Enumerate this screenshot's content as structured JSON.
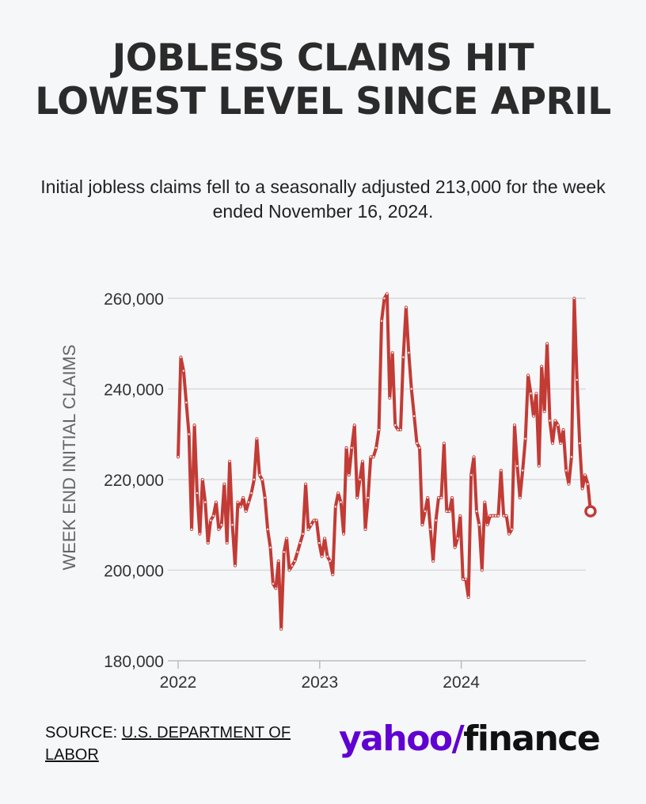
{
  "title": "JOBLESS CLAIMS HIT LOWEST LEVEL SINCE APRIL",
  "subtitle": "Initial jobless claims fell to a seasonally adjusted 213,000 for the week ended November 16, 2024.",
  "source_label": "SOURCE: ",
  "source_link": "U.S. DEPARTMENT OF LABOR",
  "logo": {
    "brand": "yahoo/",
    "product": "finance",
    "brand_color": "#6001d2"
  },
  "chart_data": {
    "type": "line",
    "title": "JOBLESS CLAIMS HIT LOWEST LEVEL SINCE APRIL",
    "ylabel": "WEEK END INITIAL CLAIMS",
    "xlabel": "",
    "ylim": [
      180000,
      260000
    ],
    "yticks": [
      180000,
      200000,
      220000,
      240000,
      260000
    ],
    "ytick_labels": [
      "180,000",
      "200,000",
      "220,000",
      "240,000",
      "260,000"
    ],
    "xticks": [
      2022,
      2023,
      2024
    ],
    "xtick_labels": [
      "2022",
      "2023",
      "2024"
    ],
    "xlim": [
      2022,
      2024.88
    ],
    "grid": true,
    "line_color": "#c23b35",
    "last_point_label_marker": "hollow circle",
    "series": [
      {
        "x_start": 2022.0,
        "x_step_weeks": 1,
        "values": [
          225000,
          247000,
          244000,
          237000,
          230000,
          209000,
          232000,
          217000,
          208000,
          220000,
          215000,
          206000,
          211000,
          212000,
          215000,
          209000,
          210000,
          219000,
          206000,
          224000,
          210000,
          201000,
          215000,
          214000,
          216000,
          213000,
          215000,
          217000,
          220000,
          229000,
          221000,
          220000,
          216000,
          209000,
          205000,
          197000,
          196000,
          202000,
          187000,
          204000,
          207000,
          200000,
          201000,
          202000,
          204000,
          206000,
          208000,
          219000,
          209000,
          210000,
          211000,
          211000,
          206000,
          203000,
          207000,
          203000,
          202000,
          199000,
          214000,
          217000,
          215000,
          208000,
          227000,
          221000,
          227000,
          232000,
          216000,
          220000,
          224000,
          209000,
          216000,
          225000,
          225000,
          227000,
          231000,
          255000,
          260000,
          261000,
          238000,
          248000,
          232000,
          231000,
          231000,
          247000,
          258000,
          248000,
          240000,
          234000,
          228000,
          227000,
          210000,
          213000,
          216000,
          209000,
          202000,
          211000,
          216000,
          216000,
          228000,
          213000,
          213000,
          216000,
          205000,
          207000,
          212000,
          198000,
          198000,
          194000,
          221000,
          225000,
          213000,
          210000,
          200000,
          215000,
          210000,
          212000,
          212000,
          212000,
          212000,
          222000,
          212000,
          212000,
          208000,
          209000,
          232000,
          223000,
          216000,
          222000,
          229000,
          243000,
          239000,
          234000,
          239000,
          223000,
          245000,
          235000,
          250000,
          233000,
          228000,
          233000,
          232000,
          228000,
          231000,
          222000,
          219000,
          225000,
          260000,
          242000,
          228000,
          218000,
          221000,
          219000,
          213000
        ]
      }
    ]
  }
}
